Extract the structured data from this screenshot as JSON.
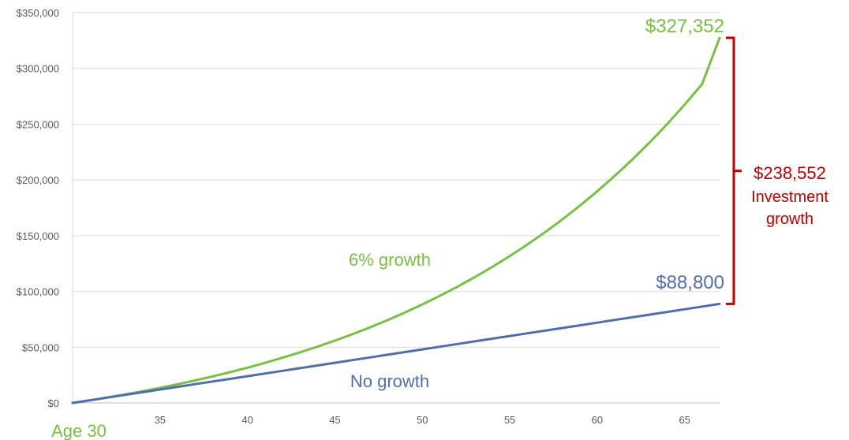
{
  "chart_data": {
    "type": "line",
    "title": "",
    "xlabel": "",
    "ylabel": "",
    "x_start_label": "Age 30",
    "x_ticks": [
      35,
      40,
      45,
      50,
      55,
      60,
      65
    ],
    "y_ticks": [
      0,
      50000,
      100000,
      150000,
      200000,
      250000,
      300000,
      350000
    ],
    "y_tick_labels": [
      "$0",
      "$50,000",
      "$100,000",
      "$150,000",
      "$200,000",
      "$250,000",
      "$300,000",
      "$350,000"
    ],
    "xlim": [
      30,
      67
    ],
    "ylim": [
      0,
      350000
    ],
    "grid": true,
    "series": [
      {
        "name": "6% growth",
        "color": "#77c043",
        "x": [
          30,
          31,
          32,
          33,
          34,
          35,
          36,
          37,
          38,
          39,
          40,
          41,
          42,
          43,
          44,
          45,
          46,
          47,
          48,
          49,
          50,
          51,
          52,
          53,
          54,
          55,
          56,
          57,
          58,
          59,
          60,
          61,
          62,
          63,
          64,
          65,
          66,
          67
        ],
        "values": [
          0,
          2400,
          4944,
          7641,
          10499,
          13529,
          16741,
          20146,
          23755,
          27580,
          31635,
          35933,
          40489,
          45319,
          50438,
          55864,
          61616,
          67713,
          74176,
          81027,
          88288,
          95986,
          104145,
          112794,
          121961,
          131679,
          141980,
          152899,
          164473,
          176741,
          189746,
          203531,
          218143,
          233631,
          250049,
          267452,
          285899,
          327352
        ],
        "end_label": "$327,352"
      },
      {
        "name": "No growth",
        "color": "#4f6ead",
        "x": [
          30,
          31,
          32,
          33,
          34,
          35,
          36,
          37,
          38,
          39,
          40,
          41,
          42,
          43,
          44,
          45,
          46,
          47,
          48,
          49,
          50,
          51,
          52,
          53,
          54,
          55,
          56,
          57,
          58,
          59,
          60,
          61,
          62,
          63,
          64,
          65,
          66,
          67
        ],
        "values": [
          0,
          2400,
          4800,
          7200,
          9600,
          12000,
          14400,
          16800,
          19200,
          21600,
          24000,
          26400,
          28800,
          31200,
          33600,
          36000,
          38400,
          40800,
          43200,
          45600,
          48000,
          50400,
          52800,
          55200,
          57600,
          60000,
          62400,
          64800,
          67200,
          69600,
          72000,
          74400,
          76800,
          79200,
          81600,
          84000,
          86400,
          88800
        ],
        "end_label": "$88,800"
      }
    ],
    "annotations": {
      "difference_value": "$238,552",
      "difference_line1": "Investment",
      "difference_line2": "growth",
      "difference_color": "#c00000"
    }
  }
}
